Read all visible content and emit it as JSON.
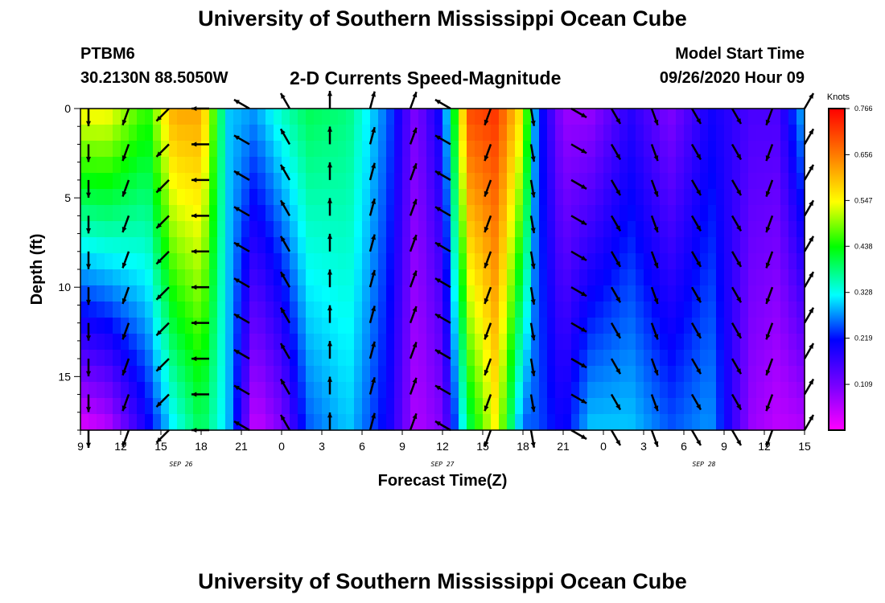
{
  "header": {
    "title": "University of Southern Mississippi Ocean Cube",
    "station": "PTBM6",
    "location": "30.2130N 88.5050W",
    "plot_title": "2-D Currents Speed-Magnitude",
    "model_label": "Model Start Time",
    "model_time": "09/26/2020 Hour 09"
  },
  "footer": {
    "title": "University of Southern Mississippi Ocean Cube"
  },
  "chart_data": {
    "type": "heatmap",
    "title": "2-D Currents Speed-Magnitude",
    "xlabel": "Forecast Time(Z)",
    "ylabel": "Depth (ft)",
    "x_range_hours": [
      0,
      54
    ],
    "x_ticks": [
      "9",
      "12",
      "15",
      "18",
      "21",
      "0",
      "3",
      "6",
      "9",
      "12",
      "15",
      "18",
      "21",
      "0",
      "3",
      "6",
      "9",
      "12",
      "15"
    ],
    "date_labels": [
      {
        "label": "SEP 26",
        "hour": 7.5
      },
      {
        "label": "SEP 27",
        "hour": 27
      },
      {
        "label": "SEP 28",
        "hour": 46.5
      }
    ],
    "ylim": [
      0,
      18
    ],
    "y_ticks": [
      0,
      5,
      10,
      15
    ],
    "colorbar": {
      "title": "Knots",
      "range": [
        0.0,
        0.766
      ],
      "tick_values": [
        "0.766",
        "0.656",
        "0.547",
        "0.438",
        "0.328",
        "0.219",
        "0.109"
      ]
    },
    "speed_profile_knots": [
      {
        "hour": 0,
        "surface": 0.55,
        "bottom": 0.02
      },
      {
        "hour": 2,
        "surface": 0.55,
        "bottom": 0.05
      },
      {
        "hour": 5,
        "surface": 0.45,
        "bottom": 0.2
      },
      {
        "hour": 7,
        "surface": 0.62,
        "bottom": 0.32
      },
      {
        "hour": 9,
        "surface": 0.62,
        "bottom": 0.4
      },
      {
        "hour": 11,
        "surface": 0.3,
        "bottom": 0.3
      },
      {
        "hour": 13,
        "surface": 0.28,
        "bottom": 0.04
      },
      {
        "hour": 15,
        "surface": 0.35,
        "bottom": 0.1
      },
      {
        "hour": 17,
        "surface": 0.4,
        "bottom": 0.25
      },
      {
        "hour": 20,
        "surface": 0.38,
        "bottom": 0.3
      },
      {
        "hour": 23,
        "surface": 0.25,
        "bottom": 0.2
      },
      {
        "hour": 25,
        "surface": 0.1,
        "bottom": 0.06
      },
      {
        "hour": 27,
        "surface": 0.22,
        "bottom": 0.1
      },
      {
        "hour": 29,
        "surface": 0.7,
        "bottom": 0.4
      },
      {
        "hour": 31,
        "surface": 0.72,
        "bottom": 0.55
      },
      {
        "hour": 33,
        "surface": 0.55,
        "bottom": 0.25
      },
      {
        "hour": 34,
        "surface": 0.25,
        "bottom": 0.25
      },
      {
        "hour": 36,
        "surface": 0.08,
        "bottom": 0.2
      },
      {
        "hour": 38,
        "surface": 0.08,
        "bottom": 0.3
      },
      {
        "hour": 41,
        "surface": 0.18,
        "bottom": 0.3
      },
      {
        "hour": 44,
        "surface": 0.1,
        "bottom": 0.25
      },
      {
        "hour": 47,
        "surface": 0.2,
        "bottom": 0.28
      },
      {
        "hour": 50,
        "surface": 0.15,
        "bottom": 0.08
      },
      {
        "hour": 52,
        "surface": 0.15,
        "bottom": 0.05
      },
      {
        "hour": 54,
        "surface": 0.3,
        "bottom": 0.06
      }
    ],
    "vector_times_hours": [
      0.6,
      3.6,
      6.6,
      9.6,
      12.6,
      15.6,
      18.6,
      21.6,
      24.6,
      27.6,
      30.6,
      33.6,
      36.6,
      39.6,
      42.6,
      45.6,
      48.6,
      51.6,
      54
    ],
    "vector_depths_ft": [
      0,
      2,
      4,
      6,
      8,
      10,
      12,
      14,
      16,
      18
    ],
    "vector_directions_deg": [
      180,
      200,
      225,
      270,
      300,
      330,
      0,
      15,
      20,
      300,
      200,
      170,
      120,
      150,
      160,
      150,
      150,
      200,
      30
    ],
    "vector_note": "direction of flow, degrees clockwise from up"
  }
}
